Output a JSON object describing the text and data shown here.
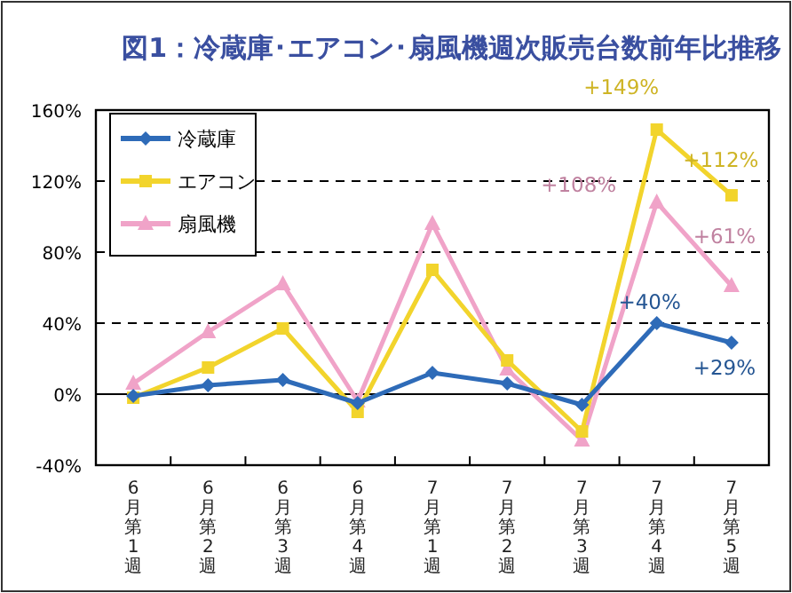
{
  "chart_data": {
    "type": "line",
    "title": "図1：冷蔵庫･エアコン･扇風機週次販売台数前年比推移",
    "categories": [
      "6月第1週",
      "6月第2週",
      "6月第3週",
      "6月第4週",
      "7月第1週",
      "7月第2週",
      "7月第3週",
      "7月第4週",
      "7月第5週"
    ],
    "series": [
      {
        "name": "冷蔵庫",
        "color": "#2e6bb8",
        "marker": "diamond",
        "values": [
          -1,
          5,
          8,
          -5,
          12,
          6,
          -6,
          40,
          29
        ],
        "value_labels": [
          null,
          null,
          null,
          null,
          null,
          null,
          null,
          "+40%",
          "+29%"
        ]
      },
      {
        "name": "エアコン",
        "color": "#f2d42c",
        "marker": "square",
        "values": [
          -2,
          15,
          37,
          -10,
          70,
          19,
          -21,
          149,
          112
        ],
        "value_labels": [
          null,
          null,
          null,
          null,
          null,
          null,
          null,
          "+149%",
          "+112%"
        ]
      },
      {
        "name": "扇風機",
        "color": "#f0a3c8",
        "marker": "triangle",
        "values": [
          6,
          35,
          62,
          -4,
          96,
          14,
          -26,
          108,
          61
        ],
        "value_labels": [
          null,
          null,
          null,
          null,
          null,
          null,
          null,
          "+108%",
          "+61%"
        ]
      }
    ],
    "ylim": [
      -40,
      160
    ],
    "yticks": [
      {
        "value": -40,
        "label": "-40%"
      },
      {
        "value": 0,
        "label": "0%"
      },
      {
        "value": 40,
        "label": "40%"
      },
      {
        "value": 80,
        "label": "80%"
      },
      {
        "value": 120,
        "label": "120%"
      },
      {
        "value": 160,
        "label": "160%"
      }
    ],
    "grid": "y",
    "legend": "top left",
    "line_style": "solid"
  }
}
